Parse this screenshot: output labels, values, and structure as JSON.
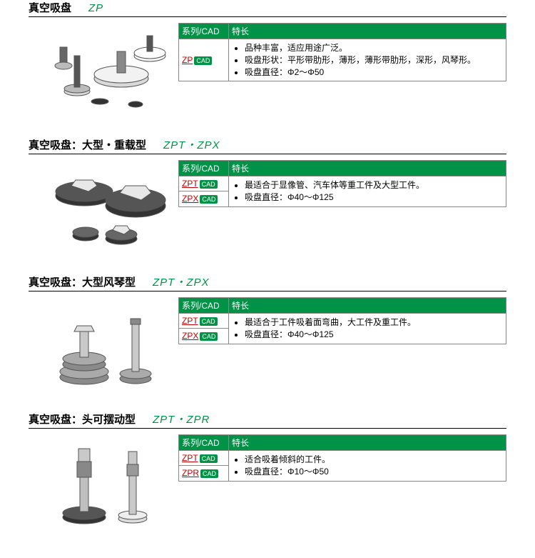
{
  "cad_label": "CAD",
  "table_headers": {
    "series": "系列/CAD",
    "features": "特长"
  },
  "colors": {
    "accent_green": "#009247",
    "link_red": "#c00000",
    "border_gray": "#888888",
    "heading_black": "#000000",
    "bg_white": "#ffffff"
  },
  "sections": [
    {
      "title": "真空吸盘",
      "model": "ZP",
      "image_key": "img1",
      "rows": [
        {
          "series": "ZP"
        }
      ],
      "features": [
        "品种丰富，适应用途广泛。",
        "吸盘形状：平形带肋形，薄形，薄形带肋形，深形，风琴形。",
        "吸盘直径：Φ2～Φ50"
      ]
    },
    {
      "title": "真空吸盘：大型・重载型",
      "model": "ZPT・ZPX",
      "image_key": "img2",
      "rows": [
        {
          "series": "ZPT"
        },
        {
          "series": "ZPX"
        }
      ],
      "features": [
        "最适合于显像管、汽车体等重工件及大型工件。",
        "吸盘直径：Φ40～Φ125"
      ]
    },
    {
      "title": "真空吸盘：大型风琴型",
      "model": "ZPT・ZPX",
      "image_key": "img3",
      "rows": [
        {
          "series": "ZPT"
        },
        {
          "series": "ZPX"
        }
      ],
      "features": [
        "最适合于工件吸着面弯曲，大工件及重工件。",
        "吸盘直径：Φ40～Φ125"
      ]
    },
    {
      "title": "真空吸盘：头可摆动型",
      "model": "ZPT・ZPR",
      "image_key": "img4",
      "rows": [
        {
          "series": "ZPT"
        },
        {
          "series": "ZPR"
        }
      ],
      "features": [
        "适合吸着倾斜的工件。",
        "吸盘直径：Φ10～Φ50"
      ]
    }
  ]
}
